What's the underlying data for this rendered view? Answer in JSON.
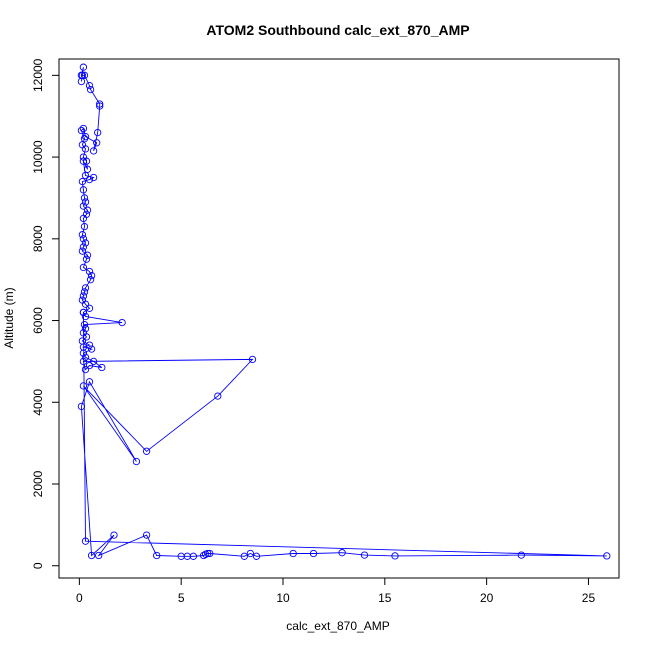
{
  "chart_data": {
    "type": "line",
    "title": "ATOM2 Southbound calc_ext_870_AMP",
    "xlabel": "calc_ext_870_AMP",
    "ylabel": "Altitude (m)",
    "xlim": [
      -1,
      26.5
    ],
    "ylim": [
      -300,
      12400
    ],
    "x_ticks": [
      0,
      5,
      10,
      15,
      20,
      25
    ],
    "y_ticks": [
      0,
      2000,
      4000,
      6000,
      8000,
      10000,
      12000
    ],
    "grid": false,
    "legend": "none",
    "series": [
      {
        "color": "#0000ff",
        "marker": "open-circle",
        "x": [
          0.1,
          0.2,
          0.1,
          0.15,
          0.25,
          0.5,
          0.55,
          1.0,
          1.0,
          0.9,
          0.7,
          0.85,
          0.3,
          0.2,
          0.1,
          0.25,
          0.15,
          0.3,
          0.2,
          0.35,
          0.4,
          0.2,
          0.3,
          0.7,
          0.5,
          0.15,
          0.2,
          0.25,
          0.3,
          0.2,
          0.4,
          0.35,
          0.2,
          0.25,
          0.15,
          0.2,
          0.3,
          0.2,
          0.15,
          0.4,
          0.35,
          0.2,
          0.5,
          0.6,
          0.55,
          0.3,
          0.25,
          0.2,
          0.15,
          0.3,
          0.5,
          0.2,
          0.3,
          2.1,
          0.25,
          0.3,
          0.2,
          0.35,
          0.15,
          0.5,
          0.2,
          0.6,
          0.2,
          0.3,
          0.7,
          1.1,
          0.5,
          0.3,
          0.2,
          8.5,
          6.8,
          3.3,
          0.2,
          2.8,
          0.5,
          0.1,
          0.6,
          1.7,
          0.95,
          3.3,
          3.8,
          5.0,
          5.3,
          5.6,
          6.1,
          6.2,
          6.3,
          6.4,
          8.1,
          8.4,
          8.7,
          10.5,
          11.5,
          12.9,
          14.0,
          15.5,
          21.7,
          25.9,
          0.3,
          0.2
        ],
        "y": [
          12000,
          12200,
          11850,
          12000,
          12000,
          11750,
          11650,
          11300,
          11250,
          10600,
          10150,
          10350,
          10500,
          10700,
          10650,
          10450,
          10300,
          10200,
          10000,
          9900,
          9700,
          9900,
          9550,
          9500,
          9450,
          9400,
          9200,
          9000,
          8900,
          8800,
          8700,
          8600,
          8500,
          8300,
          8100,
          8000,
          7900,
          7800,
          7700,
          7600,
          7500,
          7300,
          7200,
          7100,
          7000,
          6800,
          6700,
          6600,
          6500,
          6400,
          6300,
          6200,
          6100,
          5950,
          5900,
          5800,
          5700,
          5600,
          5500,
          5400,
          5350,
          5300,
          5200,
          5100,
          5000,
          4850,
          4900,
          4800,
          5000,
          5050,
          4150,
          2800,
          4400,
          2550,
          4500,
          3900,
          250,
          750,
          250,
          750,
          250,
          230,
          230,
          230,
          250,
          280,
          300,
          300,
          230,
          300,
          230,
          300,
          300,
          320,
          260,
          240,
          260,
          240,
          600,
          6200
        ]
      }
    ]
  }
}
